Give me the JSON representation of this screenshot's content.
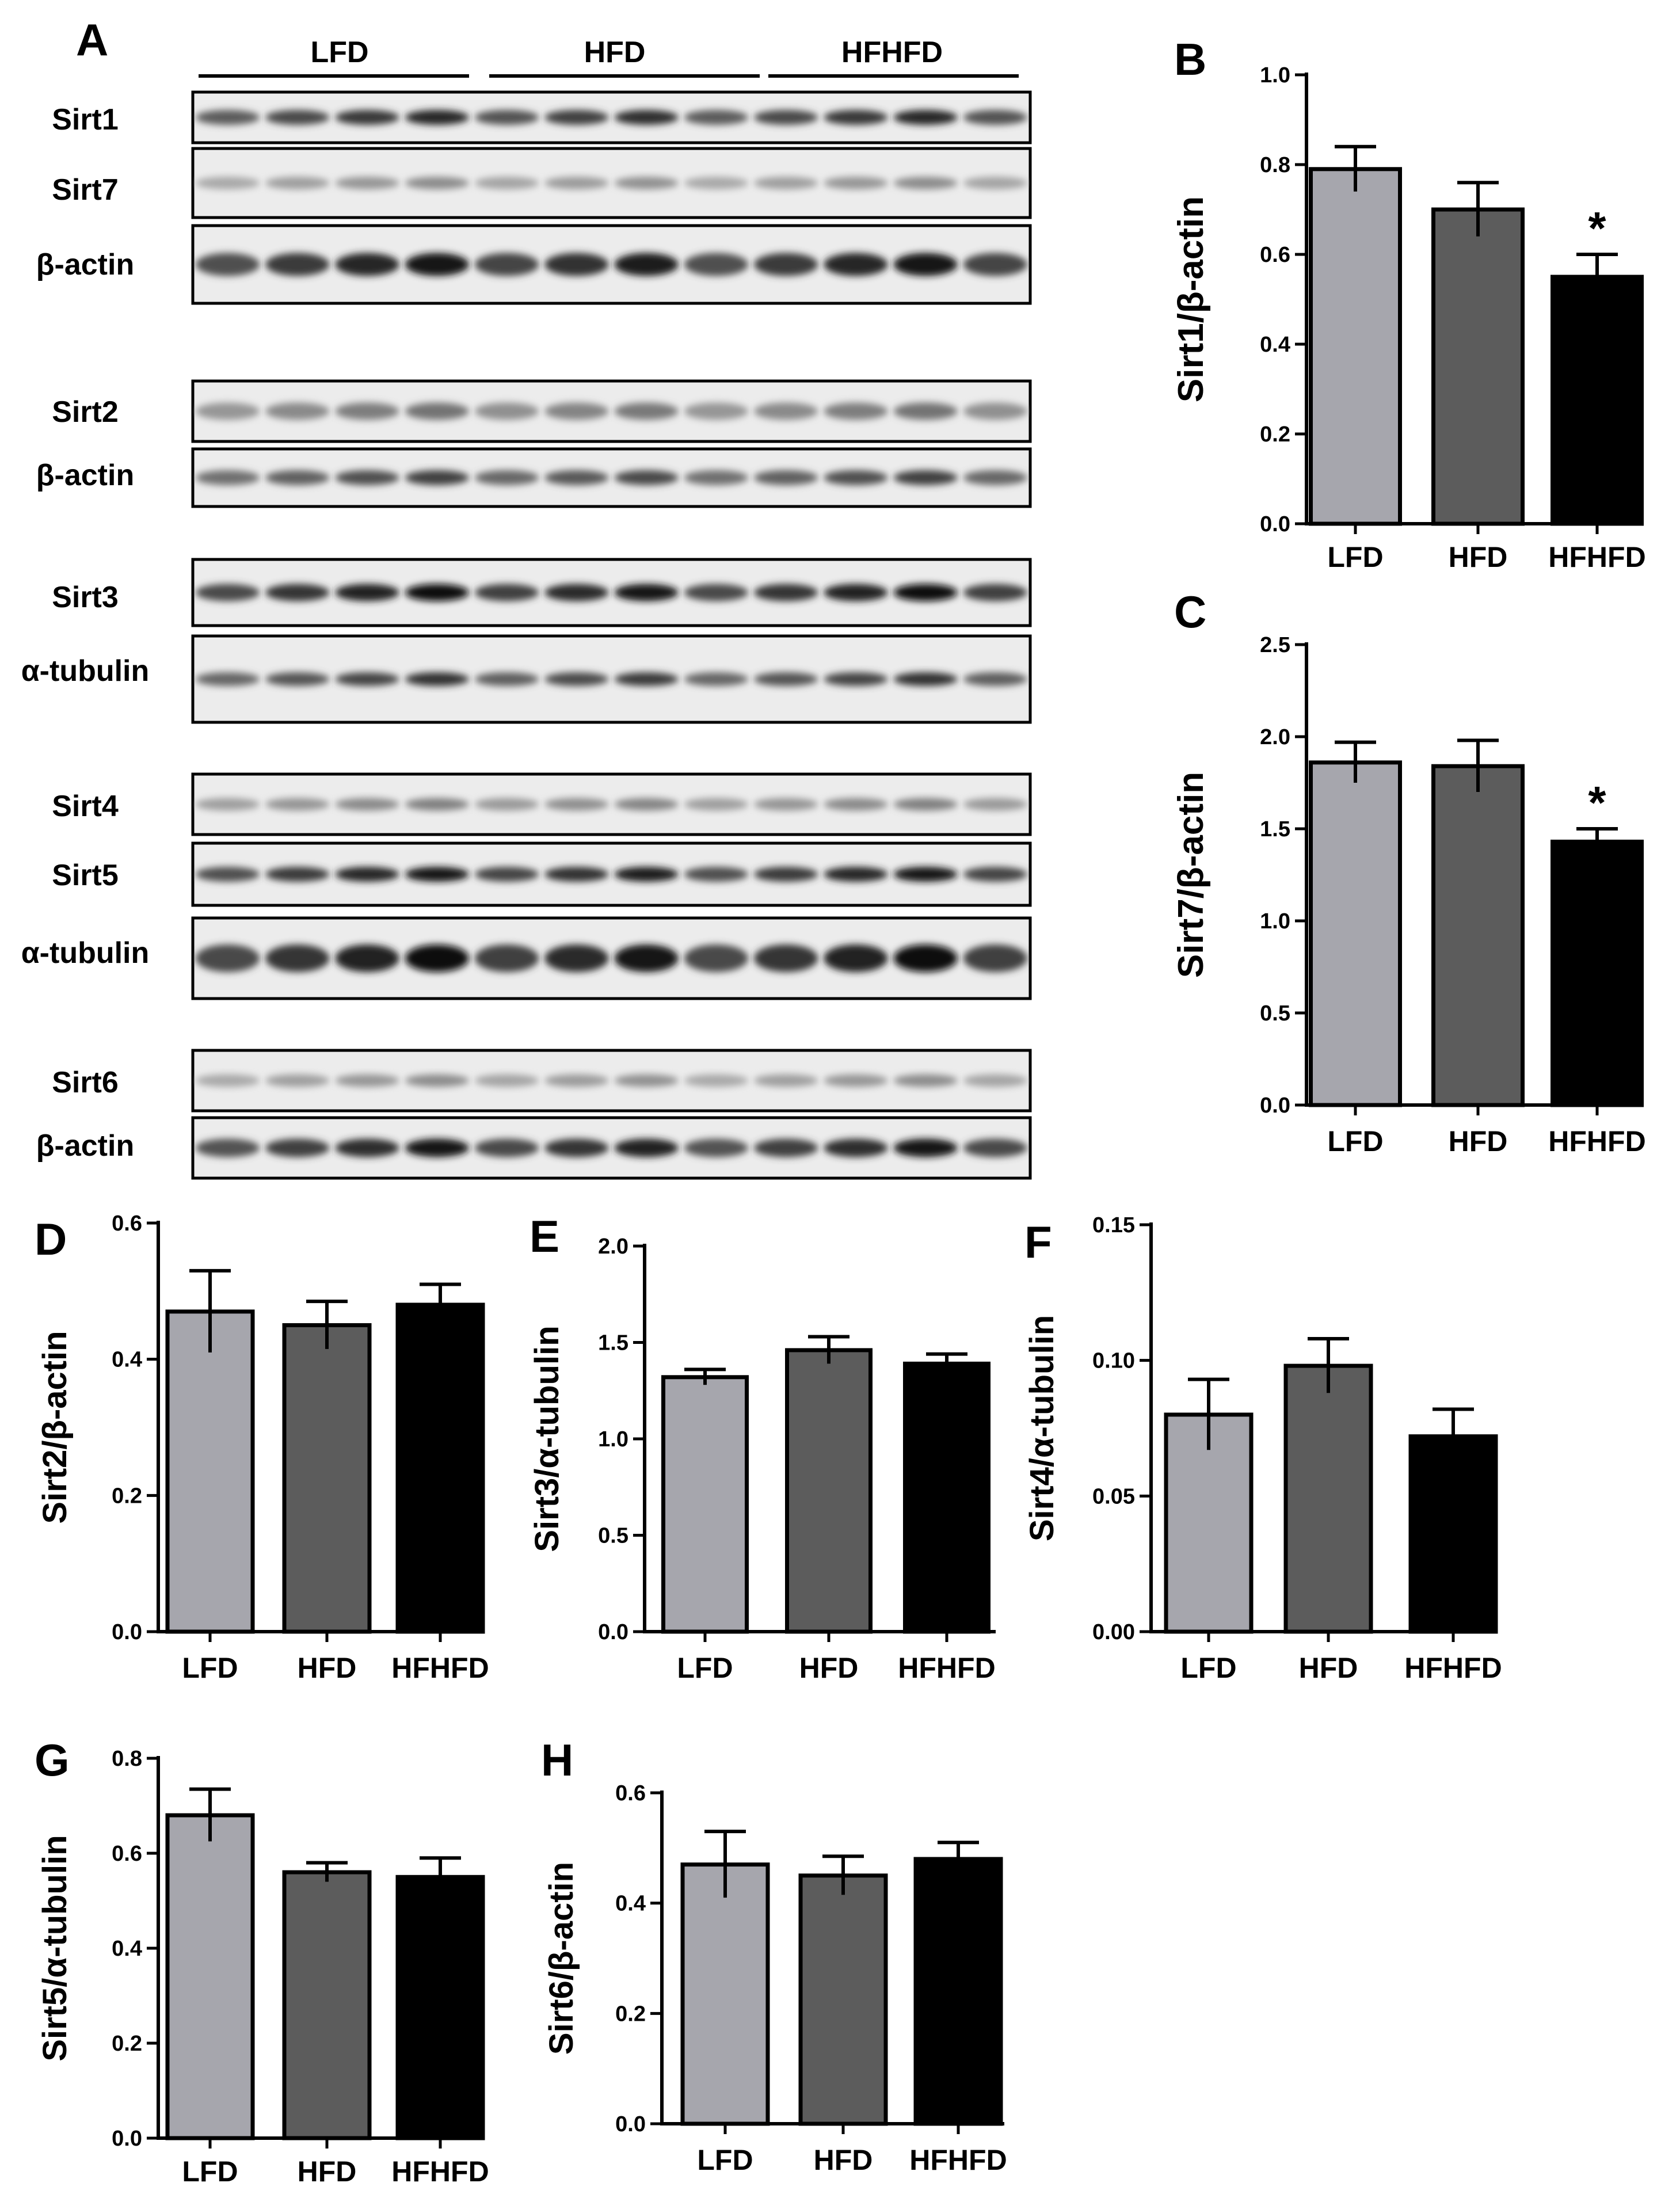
{
  "figure": {
    "panel_A": {
      "letter": "A",
      "groups": [
        "LFD",
        "HFD",
        "HFHFD"
      ],
      "blot_labels": {
        "sirt1": "Sirt1",
        "sirt7": "Sirt7",
        "bactin1": "β-actin",
        "sirt2": "Sirt2",
        "bactin2": "β-actin",
        "sirt3": "Sirt3",
        "atub1": "α-tubulin",
        "sirt4": "Sirt4",
        "sirt5": "Sirt5",
        "atub2": "α-tubulin",
        "sirt6": "Sirt6",
        "bactin3": "β-actin"
      }
    },
    "colors": {
      "LFD": "#a6a6ad",
      "HFD": "#5c5c5c",
      "HFHFD": "#000000"
    }
  },
  "chart_data": [
    {
      "id": "B",
      "letter": "B",
      "type": "bar",
      "categories": [
        "LFD",
        "HFD",
        "HFHFD"
      ],
      "values": [
        0.79,
        0.7,
        0.55
      ],
      "errors": [
        0.05,
        0.06,
        0.05
      ],
      "significance": [
        "",
        "",
        "*"
      ],
      "ylabel": "Sirt1/β-actin",
      "ylim": [
        0,
        1.0
      ],
      "ticks": [
        0.0,
        0.2,
        0.4,
        0.6,
        0.8,
        1.0
      ],
      "tick_labels": [
        "0.0",
        "0.2",
        "0.4",
        "0.6",
        "0.8",
        "1.0"
      ]
    },
    {
      "id": "C",
      "letter": "C",
      "type": "bar",
      "categories": [
        "LFD",
        "HFD",
        "HFHFD"
      ],
      "values": [
        1.86,
        1.84,
        1.43
      ],
      "errors": [
        0.11,
        0.14,
        0.07
      ],
      "significance": [
        "",
        "",
        "*"
      ],
      "ylabel": "Sirt7/β-actin",
      "ylim": [
        0,
        2.5
      ],
      "ticks": [
        0.0,
        0.5,
        1.0,
        1.5,
        2.0,
        2.5
      ],
      "tick_labels": [
        "0.0",
        "0.5",
        "1.0",
        "1.5",
        "2.0",
        "2.5"
      ]
    },
    {
      "id": "D",
      "letter": "D",
      "type": "bar",
      "categories": [
        "LFD",
        "HFD",
        "HFHFD"
      ],
      "values": [
        0.47,
        0.45,
        0.48
      ],
      "errors": [
        0.06,
        0.035,
        0.03
      ],
      "significance": [
        "",
        "",
        ""
      ],
      "ylabel": "Sirt2/β-actin",
      "ylim": [
        0,
        0.6
      ],
      "ticks": [
        0.0,
        0.2,
        0.4,
        0.6
      ],
      "tick_labels": [
        "0.0",
        "0.2",
        "0.4",
        "0.6"
      ]
    },
    {
      "id": "E",
      "letter": "E",
      "type": "bar",
      "categories": [
        "LFD",
        "HFD",
        "HFHFD"
      ],
      "values": [
        1.32,
        1.46,
        1.39
      ],
      "errors": [
        0.04,
        0.07,
        0.05
      ],
      "significance": [
        "",
        "",
        ""
      ],
      "ylabel": "Sirt3/α-tubulin",
      "ylim": [
        0,
        2.0
      ],
      "ticks": [
        0.0,
        0.5,
        1.0,
        1.5,
        2.0
      ],
      "tick_labels": [
        "0.0",
        "0.5",
        "1.0",
        "1.5",
        "2.0"
      ]
    },
    {
      "id": "F",
      "letter": "F",
      "type": "bar",
      "categories": [
        "LFD",
        "HFD",
        "HFHFD"
      ],
      "values": [
        0.08,
        0.098,
        0.072
      ],
      "errors": [
        0.013,
        0.01,
        0.01
      ],
      "significance": [
        "",
        "",
        ""
      ],
      "ylabel": "Sirt4/α-tubulin",
      "ylim": [
        0,
        0.15
      ],
      "ticks": [
        0.0,
        0.05,
        0.1,
        0.15
      ],
      "tick_labels": [
        "0.00",
        "0.05",
        "0.10",
        "0.15"
      ]
    },
    {
      "id": "G",
      "letter": "G",
      "type": "bar",
      "categories": [
        "LFD",
        "HFD",
        "HFHFD"
      ],
      "values": [
        0.68,
        0.56,
        0.55
      ],
      "errors": [
        0.055,
        0.02,
        0.04
      ],
      "significance": [
        "",
        "",
        ""
      ],
      "ylabel": "Sirt5/α-tubulin",
      "ylim": [
        0,
        0.8
      ],
      "ticks": [
        0.0,
        0.2,
        0.4,
        0.6,
        0.8
      ],
      "tick_labels": [
        "0.0",
        "0.2",
        "0.4",
        "0.6",
        "0.8"
      ]
    },
    {
      "id": "H",
      "letter": "H",
      "type": "bar",
      "categories": [
        "LFD",
        "HFD",
        "HFHFD"
      ],
      "values": [
        0.47,
        0.45,
        0.48
      ],
      "errors": [
        0.06,
        0.035,
        0.03
      ],
      "significance": [
        "",
        "",
        ""
      ],
      "ylabel": "Sirt6/β-actin",
      "ylim": [
        0,
        0.6
      ],
      "ticks": [
        0.0,
        0.2,
        0.4,
        0.6
      ],
      "tick_labels": [
        "0.0",
        "0.2",
        "0.4",
        "0.6"
      ]
    }
  ]
}
